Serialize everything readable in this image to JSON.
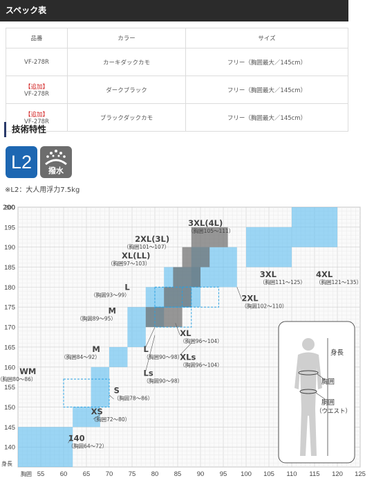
{
  "spec_table": {
    "title": "スペック表",
    "headers": [
      "品番",
      "カラー",
      "サイズ"
    ],
    "rows": [
      {
        "tag": "",
        "code": "VF-278R",
        "color": "カーキダックカモ",
        "size": "フリー（胸囲最大／145cm）"
      },
      {
        "tag": "【追加】",
        "code": "VF-278R",
        "color": "ダークブラック",
        "size": "フリー（胸囲最大／145cm）"
      },
      {
        "tag": "【追加】",
        "code": "VF-278R",
        "color": "ブラックダックカモ",
        "size": "フリー（胸囲最大／145cm）"
      }
    ]
  },
  "tech": {
    "title": "技術特性",
    "badge_l2": "L2",
    "badge_water": "撥水",
    "note": "※L2：大人用浮力7.5kg"
  },
  "chart_data": {
    "type": "heatmap",
    "x_label": "胸囲",
    "y_label": "身長",
    "x_ticks": [
      55,
      60,
      65,
      70,
      75,
      80,
      85,
      90,
      95,
      100,
      105,
      110,
      115,
      120,
      125
    ],
    "y_ticks": [
      140,
      145,
      150,
      155,
      160,
      165,
      170,
      175,
      180,
      185,
      190,
      195,
      200
    ],
    "xlim": [
      50,
      125
    ],
    "ylim": [
      135,
      200
    ],
    "sizes": [
      {
        "name": "140",
        "sub": "（胸囲64〜72）",
        "x": [
          50,
          62
        ],
        "y": [
          135,
          145
        ],
        "style": "blue"
      },
      {
        "name": "XS",
        "sub": "（胸囲72〜80）",
        "x": [
          62,
          68
        ],
        "y": [
          145,
          150
        ],
        "style": "blue"
      },
      {
        "name": "S",
        "sub": "（胸囲78〜86）",
        "x": [
          66,
          70
        ],
        "y": [
          150,
          160
        ],
        "style": "blue"
      },
      {
        "name": "WM",
        "sub": "（胸囲80〜86）",
        "x": [
          60,
          70
        ],
        "y": [
          150,
          157
        ],
        "style": "dashed"
      },
      {
        "name": "M",
        "sub": "（胸囲84〜92）",
        "x": [
          70,
          74
        ],
        "y": [
          160,
          165
        ],
        "style": "blue"
      },
      {
        "name": "M",
        "sub": "（胸囲89〜95）",
        "x": [
          74,
          78
        ],
        "y": [
          165,
          175
        ],
        "style": "blue"
      },
      {
        "name": "L",
        "sub": "（胸囲93〜99）",
        "x": [
          78,
          82
        ],
        "y": [
          170,
          180
        ],
        "style": "blue"
      },
      {
        "name": "XL",
        "sub": "（胸囲96〜104）",
        "x": [
          82,
          90
        ],
        "y": [
          175,
          185
        ],
        "style": "blue"
      },
      {
        "name": "2XL",
        "sub": "（胸囲102〜110）",
        "x": [
          88,
          98
        ],
        "y": [
          180,
          190
        ],
        "style": "blue"
      },
      {
        "name": "3XL",
        "sub": "（胸囲111〜125）",
        "x": [
          100,
          110
        ],
        "y": [
          185,
          195
        ],
        "style": "blue"
      },
      {
        "name": "4XL",
        "sub": "（胸囲121〜135）",
        "x": [
          110,
          120
        ],
        "y": [
          190,
          200
        ],
        "style": "blue"
      },
      {
        "name": "Ls",
        "sub": "（胸囲90〜98）",
        "x": [
          80,
          88
        ],
        "y": [
          170,
          175
        ],
        "style": "dashed"
      },
      {
        "name": "L",
        "sub": "（胸囲90〜98）",
        "x": [
          80,
          88
        ],
        "y": [
          175,
          180
        ],
        "style": "dashed"
      },
      {
        "name": "XLs",
        "sub": "（胸囲96〜104）",
        "x": [
          86,
          94
        ],
        "y": [
          175,
          180
        ],
        "style": "dashed"
      },
      {
        "name": "M (gray)",
        "x": [
          78,
          86
        ],
        "y": [
          170,
          175
        ],
        "style": "gray"
      },
      {
        "name": "L (gray)",
        "x": [
          82,
          88
        ],
        "y": [
          175,
          180
        ],
        "style": "gray"
      },
      {
        "name": "XL(LL) (gray)",
        "x": [
          84,
          90
        ],
        "y": [
          180,
          185
        ],
        "style": "gray"
      },
      {
        "name": "2XL(3L) (gray)",
        "x": [
          86,
          92
        ],
        "y": [
          185,
          190
        ],
        "style": "gray"
      },
      {
        "name": "3XL(4L) (gray)",
        "x": [
          88,
          96
        ],
        "y": [
          190,
          195
        ],
        "style": "gray"
      }
    ],
    "labels": [
      {
        "id": "l140",
        "name": "140",
        "sub": "（胸囲64〜72）"
      },
      {
        "id": "lxs",
        "name": "XS",
        "sub": "（胸囲72〜80）"
      },
      {
        "id": "ls",
        "name": "S",
        "sub": "（胸囲78〜86）"
      },
      {
        "id": "lwm",
        "name": "WM",
        "sub": "（胸囲80〜86）"
      },
      {
        "id": "lm1",
        "name": "M",
        "sub": "（胸囲84〜92）"
      },
      {
        "id": "lm2",
        "name": "M",
        "sub": "（胸囲89〜95）"
      },
      {
        "id": "ll1",
        "name": "L",
        "sub": "（胸囲93〜99）"
      },
      {
        "id": "lxl1",
        "name": "XL(LL)",
        "sub": "（胸囲97〜103）"
      },
      {
        "id": "l2xl1",
        "name": "2XL(3L)",
        "sub": "（胸囲101〜107）"
      },
      {
        "id": "l3xl1",
        "name": "3XL(4L)",
        "sub": "（胸囲105〜111）"
      },
      {
        "id": "l2xl2",
        "name": "2XL",
        "sub": "（胸囲102〜110）"
      },
      {
        "id": "l3xl2",
        "name": "3XL",
        "sub": "（胸囲111〜125）"
      },
      {
        "id": "l4xl",
        "name": "4XL",
        "sub": "（胸囲121〜135）"
      },
      {
        "id": "lxl2",
        "name": "XL",
        "sub": "（胸囲96〜104）"
      },
      {
        "id": "lxls",
        "name": "XLs",
        "sub": "（胸囲96〜104）"
      },
      {
        "id": "ll2",
        "name": "L",
        "sub": "（胸囲90〜98）"
      },
      {
        "id": "lls",
        "name": "Ls",
        "sub": "（胸囲90〜98）"
      }
    ],
    "body_legend": {
      "height": "身長",
      "chest": "胸囲",
      "waist": "胴囲",
      "waist_sub": "（ウエスト）"
    }
  }
}
